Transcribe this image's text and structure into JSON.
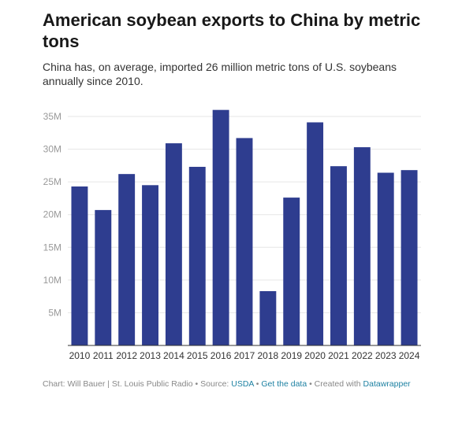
{
  "title": "American soybean exports to China by metric tons",
  "subtitle": "China has, on average, imported 26 million metric tons of U.S. soybeans annually since 2010.",
  "footer": {
    "chart_by": "Chart: Will Bauer | St. Louis Public Radio • Source: ",
    "source_link": "USDA",
    "sep": " • ",
    "data_link": "Get the data",
    "created": " • Created with ",
    "tool_link": "Datawrapper"
  },
  "colors": {
    "bar": "#2e3d8f",
    "grid": "#e6e6e6",
    "axis": "#333333"
  },
  "chart_data": {
    "type": "bar",
    "title": "American soybean exports to China by metric tons",
    "xlabel": "",
    "ylabel": "",
    "categories": [
      "2010",
      "2011",
      "2012",
      "2013",
      "2014",
      "2015",
      "2016",
      "2017",
      "2018",
      "2019",
      "2020",
      "2021",
      "2022",
      "2023",
      "2024"
    ],
    "values": [
      24.3,
      20.7,
      26.2,
      24.5,
      30.9,
      27.3,
      36.0,
      31.7,
      8.3,
      22.6,
      34.1,
      27.4,
      30.3,
      26.4,
      26.8
    ],
    "value_unit": "million metric tons",
    "ylim": [
      0,
      35
    ],
    "yticks": [
      5,
      10,
      15,
      20,
      25,
      30,
      35
    ],
    "ytick_labels": [
      "5M",
      "10M",
      "15M",
      "20M",
      "25M",
      "30M",
      "35M"
    ],
    "grid": true
  }
}
